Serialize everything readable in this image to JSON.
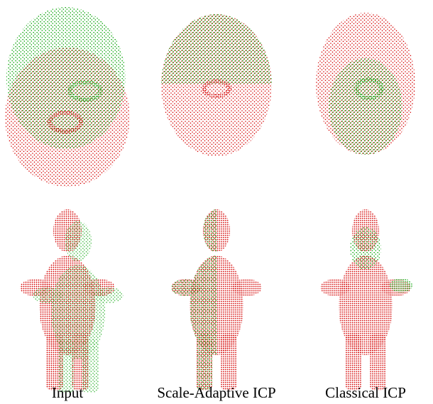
{
  "captions": [
    "Input",
    "Scale-Adaptive ICP",
    "Classical ICP"
  ]
}
